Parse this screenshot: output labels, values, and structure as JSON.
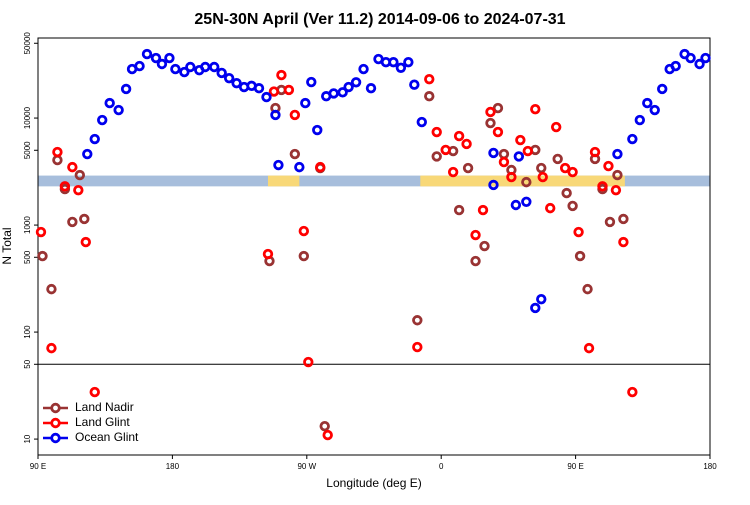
{
  "chart_data": {
    "type": "scatter",
    "title": "25N-30N April (Ver 11.2)   2014-09-06 to 2024-07-31",
    "xlabel": "Longitude (deg E)",
    "ylabel": "N Total",
    "log_y": true,
    "xlim": [
      90,
      540
    ],
    "xticks": [
      {
        "value": 90,
        "label": "90 E"
      },
      180,
      {
        "value": 270,
        "label": "90 W"
      },
      {
        "value": 360,
        "label": "0"
      },
      {
        "value": 450,
        "label": "90 E"
      },
      {
        "value": 540,
        "label": "180"
      }
    ],
    "ylim": [
      7.1,
      56000
    ],
    "yticks": [
      10,
      50,
      100,
      500,
      1000,
      5000,
      10000,
      50000
    ],
    "hline": 50,
    "band": {
      "range": [
        2300,
        2900
      ],
      "color": "#a7bedc",
      "highlight_color": "#f8d878",
      "highlights": [
        [
          244,
          265
        ],
        [
          346,
          483
        ]
      ]
    },
    "legend": "bottom-left",
    "series": [
      {
        "name": "Land Nadir",
        "color": "#993333",
        "x": [
          93,
          99,
          103,
          108,
          113,
          118,
          121,
          245,
          249,
          253,
          262,
          268,
          279,
          282,
          344,
          352,
          357,
          368,
          372,
          378,
          383,
          389,
          393,
          398,
          402,
          407,
          417,
          423,
          427,
          438,
          444,
          448,
          453,
          458,
          463,
          468,
          473,
          478,
          482
        ],
        "values": [
          513,
          252,
          4050,
          2170,
          1070,
          2930,
          1140,
          461,
          12400,
          18300,
          4610,
          513,
          3410,
          13.2,
          129,
          16000,
          4380,
          4920,
          1380,
          3410,
          461,
          637,
          8980,
          12400,
          4610,
          3270,
          2520,
          5040,
          3410,
          4150,
          1990,
          1510,
          513,
          252,
          4150,
          2170,
          1070,
          2930,
          1140
        ]
      },
      {
        "name": "Land Glint",
        "color": "#ff0000",
        "x": [
          92,
          99,
          103,
          108,
          113,
          117,
          122,
          128,
          244,
          248,
          253,
          258,
          262,
          268,
          271,
          279,
          284,
          344,
          352,
          357,
          363,
          368,
          372,
          377,
          383,
          388,
          393,
          398,
          402,
          407,
          413,
          418,
          423,
          428,
          433,
          437,
          443,
          448,
          452,
          459,
          463,
          468,
          472,
          477,
          482,
          488
        ],
        "values": [
          861,
          70.8,
          4810,
          2300,
          3480,
          2120,
          693,
          27.5,
          536,
          17700,
          25200,
          18300,
          10700,
          879,
          52.5,
          3480,
          10.9,
          72.4,
          23100,
          7400,
          5040,
          3130,
          6790,
          5730,
          807,
          1380,
          11400,
          7400,
          3880,
          2810,
          6230,
          4920,
          12100,
          2810,
          1440,
          8240,
          3410,
          3130,
          861,
          70.8,
          4810,
          2300,
          3560,
          2120,
          693,
          27.5
        ]
      },
      {
        "name": "Ocean Glint",
        "color": "#0000ee",
        "x": [
          123,
          128,
          133,
          138,
          144,
          149,
          153,
          158,
          163,
          169,
          173,
          178,
          182,
          188,
          192,
          198,
          202,
          208,
          213,
          218,
          223,
          228,
          233,
          238,
          243,
          249,
          251,
          265,
          269,
          273,
          277,
          283,
          288,
          294,
          298,
          303,
          308,
          313,
          318,
          323,
          328,
          333,
          338,
          342,
          347,
          395,
          395,
          410,
          417,
          412,
          423,
          427,
          478,
          488,
          493,
          498,
          503,
          508,
          513,
          517,
          523,
          527,
          533,
          537
        ],
        "values": [
          4610,
          6370,
          9580,
          13800,
          11880,
          18700,
          28700,
          30600,
          39600,
          36400,
          32000,
          36400,
          28700,
          26900,
          30000,
          28000,
          30000,
          30000,
          26400,
          23600,
          21200,
          19500,
          20000,
          19000,
          15700,
          10700,
          3640,
          3480,
          13800,
          21700,
          7730,
          16000,
          17000,
          17400,
          19500,
          21600,
          28700,
          19000,
          35600,
          33300,
          33300,
          29500,
          33300,
          20500,
          9180,
          4720,
          2370,
          1540,
          1650,
          4380,
          168,
          203,
          4610,
          6370,
          9580,
          13800,
          11880,
          18700,
          28700,
          30600,
          39600,
          36400,
          32000,
          36400
        ]
      }
    ]
  }
}
